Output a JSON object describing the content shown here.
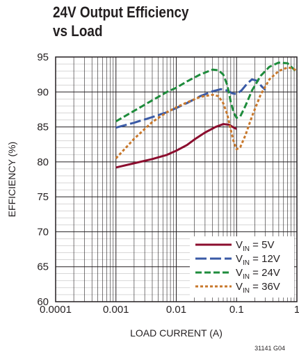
{
  "chart_data": {
    "type": "line",
    "title_lines": [
      "24V Output Efficiency",
      "vs Load"
    ],
    "xlabel": "LOAD CURRENT (A)",
    "ylabel": "EFFICIENCY (%)",
    "x_scale": "log",
    "xlim": [
      0.0001,
      1
    ],
    "ylim": [
      60,
      95
    ],
    "x_ticks": [
      "0.0001",
      "0.001",
      "0.01",
      "0.1",
      "1"
    ],
    "y_ticks": [
      "60",
      "65",
      "70",
      "75",
      "80",
      "85",
      "90",
      "95"
    ],
    "grid": true,
    "legend_position": "bottom-right",
    "figure_id": "31141 G04",
    "series": [
      {
        "name": "VIN = 5V",
        "label_main": "V",
        "label_sub": "IN",
        "label_rest": " = 5V",
        "color": "#8b0d2e",
        "dash": "solid",
        "points": [
          [
            0.001,
            79.2
          ],
          [
            0.002,
            79.8
          ],
          [
            0.004,
            80.4
          ],
          [
            0.007,
            81.0
          ],
          [
            0.01,
            81.6
          ],
          [
            0.015,
            82.4
          ],
          [
            0.02,
            83.2
          ],
          [
            0.03,
            84.2
          ],
          [
            0.045,
            85.0
          ],
          [
            0.06,
            85.4
          ],
          [
            0.075,
            85.3
          ],
          [
            0.09,
            84.9
          ],
          [
            0.1,
            84.7
          ]
        ]
      },
      {
        "name": "VIN = 12V",
        "label_main": "V",
        "label_sub": "IN",
        "label_rest": " = 12V",
        "color": "#3a5aa6",
        "dash": "long",
        "points": [
          [
            0.001,
            84.9
          ],
          [
            0.002,
            85.6
          ],
          [
            0.004,
            86.4
          ],
          [
            0.007,
            87.1
          ],
          [
            0.01,
            87.7
          ],
          [
            0.015,
            88.4
          ],
          [
            0.025,
            89.4
          ],
          [
            0.04,
            90.1
          ],
          [
            0.055,
            90.4
          ],
          [
            0.07,
            90.2
          ],
          [
            0.085,
            89.8
          ],
          [
            0.1,
            89.7
          ],
          [
            0.12,
            90.2
          ],
          [
            0.15,
            91.2
          ],
          [
            0.18,
            91.8
          ],
          [
            0.22,
            91.6
          ],
          [
            0.26,
            90.8
          ],
          [
            0.3,
            90.3
          ]
        ]
      },
      {
        "name": "VIN = 24V",
        "label_main": "V",
        "label_sub": "IN",
        "label_rest": " = 24V",
        "color": "#1e8c3c",
        "dash": "medium",
        "points": [
          [
            0.001,
            85.8
          ],
          [
            0.002,
            87.3
          ],
          [
            0.004,
            88.8
          ],
          [
            0.007,
            90.0
          ],
          [
            0.01,
            90.6
          ],
          [
            0.015,
            91.5
          ],
          [
            0.025,
            92.5
          ],
          [
            0.04,
            93.2
          ],
          [
            0.05,
            93.1
          ],
          [
            0.06,
            92.5
          ],
          [
            0.07,
            91.0
          ],
          [
            0.08,
            88.6
          ],
          [
            0.09,
            87.0
          ],
          [
            0.1,
            86.3
          ],
          [
            0.115,
            86.5
          ],
          [
            0.14,
            88.0
          ],
          [
            0.18,
            90.2
          ],
          [
            0.25,
            92.3
          ],
          [
            0.35,
            93.6
          ],
          [
            0.5,
            94.2
          ],
          [
            0.7,
            94.1
          ],
          [
            0.85,
            93.4
          ],
          [
            1.0,
            92.8
          ]
        ]
      },
      {
        "name": "VIN = 36V",
        "label_main": "V",
        "label_sub": "IN",
        "label_rest": " = 36V",
        "color": "#c8782c",
        "dash": "short",
        "points": [
          [
            0.001,
            80.5
          ],
          [
            0.002,
            83.3
          ],
          [
            0.004,
            85.7
          ],
          [
            0.007,
            87.1
          ],
          [
            0.01,
            87.8
          ],
          [
            0.015,
            88.5
          ],
          [
            0.025,
            89.3
          ],
          [
            0.04,
            89.6
          ],
          [
            0.05,
            89.4
          ],
          [
            0.06,
            88.4
          ],
          [
            0.07,
            86.8
          ],
          [
            0.08,
            84.6
          ],
          [
            0.09,
            82.8
          ],
          [
            0.1,
            81.8
          ],
          [
            0.115,
            82.1
          ],
          [
            0.14,
            83.8
          ],
          [
            0.18,
            86.5
          ],
          [
            0.25,
            89.6
          ],
          [
            0.35,
            91.8
          ],
          [
            0.5,
            93.0
          ],
          [
            0.7,
            93.5
          ],
          [
            0.85,
            93.4
          ],
          [
            1.0,
            93.0
          ]
        ]
      }
    ]
  }
}
